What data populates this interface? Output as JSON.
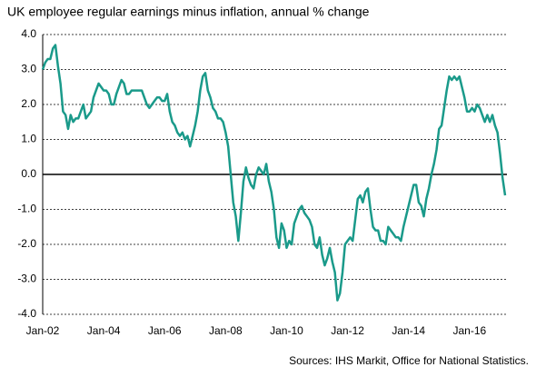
{
  "chart_data": {
    "type": "line",
    "title": "UK employee regular earnings minus inflation, annual % change",
    "source": "Sources: IHS Markit, Office for National Statistics.",
    "color": "#1a9a8a",
    "categories": [
      "Jan-02",
      null,
      null,
      null,
      null,
      null,
      null,
      null,
      null,
      null,
      null,
      null,
      null,
      null,
      null,
      null,
      null,
      null,
      null,
      null,
      null,
      null,
      null,
      null,
      "Jan-04",
      null,
      null,
      null,
      null,
      null,
      null,
      null,
      null,
      null,
      null,
      null,
      null,
      null,
      null,
      null,
      null,
      null,
      null,
      null,
      null,
      null,
      null,
      null,
      "Jan-06",
      null,
      null,
      null,
      null,
      null,
      null,
      null,
      null,
      null,
      null,
      null,
      null,
      null,
      null,
      null,
      null,
      null,
      null,
      null,
      null,
      null,
      null,
      null,
      "Jan-08",
      null,
      null,
      null,
      null,
      null,
      null,
      null,
      null,
      null,
      null,
      null,
      null,
      null,
      null,
      null,
      null,
      null,
      null,
      null,
      null,
      null,
      null,
      null,
      "Jan-10",
      null,
      null,
      null,
      null,
      null,
      null,
      null,
      null,
      null,
      null,
      null,
      null,
      null,
      null,
      null,
      null,
      null,
      null,
      null,
      null,
      null,
      null,
      null,
      "Jan-12",
      null,
      null,
      null,
      null,
      null,
      null,
      null,
      null,
      null,
      null,
      null,
      null,
      null,
      null,
      null,
      null,
      null,
      null,
      null,
      null,
      null,
      null,
      null,
      "Jan-14",
      null,
      null,
      null,
      null,
      null,
      null,
      null,
      null,
      null,
      null,
      null,
      null,
      null,
      null,
      null,
      null,
      null,
      null,
      null,
      null,
      null,
      null,
      null,
      "Jan-16",
      null,
      null,
      null,
      null,
      null,
      null,
      null,
      null,
      null,
      null,
      null,
      null,
      null,
      null
    ],
    "values": [
      3.0,
      3.2,
      3.3,
      3.3,
      3.6,
      3.7,
      3.1,
      2.6,
      1.8,
      1.7,
      1.3,
      1.7,
      1.5,
      1.6,
      1.6,
      1.8,
      2.0,
      1.6,
      1.7,
      1.8,
      2.2,
      2.4,
      2.6,
      2.5,
      2.4,
      2.4,
      2.3,
      2.0,
      2.0,
      2.3,
      2.5,
      2.7,
      2.6,
      2.3,
      2.3,
      2.4,
      2.4,
      2.4,
      2.4,
      2.4,
      2.2,
      2.0,
      1.9,
      2.0,
      2.1,
      2.2,
      2.2,
      2.1,
      2.1,
      2.3,
      1.8,
      1.5,
      1.4,
      1.2,
      1.1,
      1.2,
      1.0,
      1.1,
      0.8,
      1.1,
      1.4,
      1.8,
      2.4,
      2.8,
      2.9,
      2.4,
      2.2,
      1.9,
      1.8,
      1.6,
      1.6,
      1.5,
      1.2,
      0.8,
      0.0,
      -0.8,
      -1.2,
      -1.9,
      -1.1,
      -0.2,
      0.2,
      -0.1,
      -0.3,
      -0.4,
      0.0,
      0.2,
      0.1,
      0.0,
      0.3,
      -0.2,
      -0.5,
      -1.0,
      -1.8,
      -2.1,
      -1.4,
      -1.6,
      -2.1,
      -1.9,
      -2.0,
      -1.4,
      -1.2,
      -1.0,
      -0.9,
      -1.1,
      -1.2,
      -1.3,
      -1.5,
      -2.0,
      -2.1,
      -1.8,
      -2.3,
      -2.6,
      -2.4,
      -2.1,
      -2.5,
      -2.8,
      -3.6,
      -3.4,
      -2.8,
      -2.0,
      -1.9,
      -1.8,
      -1.9,
      -1.3,
      -0.7,
      -0.6,
      -0.8,
      -0.5,
      -0.4,
      -1.0,
      -1.5,
      -1.6,
      -1.6,
      -1.9,
      -1.9,
      -2.0,
      -1.5,
      -1.6,
      -1.7,
      -1.8,
      -1.8,
      -1.9,
      -1.5,
      -1.2,
      -0.9,
      -0.6,
      -0.3,
      -0.3,
      -0.8,
      -0.9,
      -1.2,
      -0.7,
      -0.4,
      0.0,
      0.3,
      0.7,
      1.3,
      1.4,
      1.9,
      2.4,
      2.8,
      2.7,
      2.8,
      2.7,
      2.8,
      2.5,
      2.2,
      1.8,
      1.8,
      1.9,
      1.8,
      2.0,
      1.9,
      1.7,
      1.5,
      1.7,
      1.5,
      1.7,
      1.4,
      1.2,
      0.6,
      -0.1,
      -0.6
    ],
    "ylim": [
      -4,
      4
    ],
    "yticks": [
      {
        "value": -4,
        "label": "-4.0"
      },
      {
        "value": -3,
        "label": "-3.0"
      },
      {
        "value": -2,
        "label": "-2.0"
      },
      {
        "value": -1,
        "label": "-1.0"
      },
      {
        "value": 0,
        "label": "0.0"
      },
      {
        "value": 1,
        "label": "1.0"
      },
      {
        "value": 2,
        "label": "2.0"
      },
      {
        "value": 3,
        "label": "3.0"
      },
      {
        "value": 4,
        "label": "4.0"
      }
    ],
    "grid": true
  }
}
